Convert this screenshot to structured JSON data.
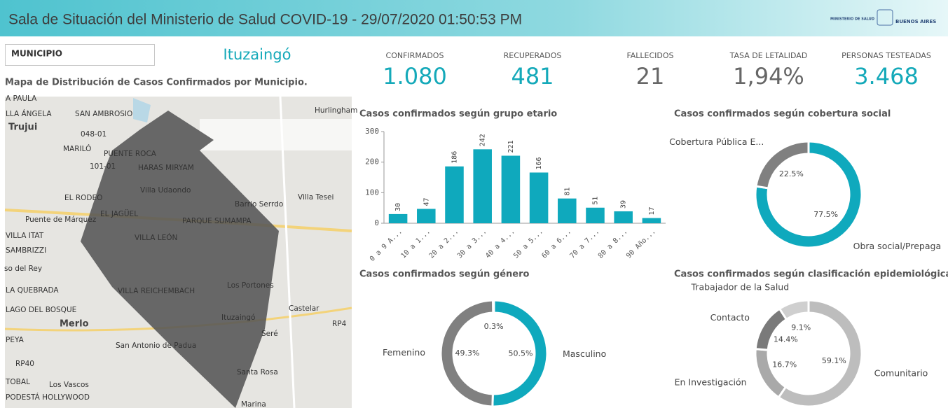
{
  "header": {
    "title": "Sala de Situación del Ministerio de Salud COVID-19 - 29/07/2020 01:50:53 PM",
    "logo_ministry": "MINISTERIO DE SALUD",
    "logo_province": "BUENOS AIRES"
  },
  "filter": {
    "label": "MUNICIPIO",
    "selected": "Ituzaingó"
  },
  "map": {
    "title": "Mapa de Distribución de Casos Confirmados por Municipio.",
    "labels": [
      "A PAULA",
      "LLA ÁNGELA",
      "SAN AMBROSIO",
      "Trujui",
      "048-01",
      "MARILÓ",
      "PUENTE ROCA",
      "101-01",
      "HARAS MIRYAM",
      "Villa Udaondo",
      "EL RODEO",
      "Barrio Serrdo",
      "Villa Tesei",
      "Hurlingham",
      "Puente de Márquez",
      "EL JAGÜEL",
      "PARQUE SUMAMPA",
      "VILLA ITAT",
      "VILLA LEÓN",
      "SAMBRIZZI",
      "so del Rey",
      "LA QUEBRADA",
      "VILLA REICHEMBACH",
      "Los Portones",
      "LAGO DEL BOSQUE",
      "Castelar",
      "Merlo",
      "Ituzaingó",
      "RP4",
      "PEYA",
      "Seré",
      "San Antonio de Padua",
      "RP40",
      "Santa Rosa",
      "TOBAL",
      "Los Vascos",
      "PODESTÁ HOLLYWOOD",
      "Marina"
    ]
  },
  "kpis": [
    {
      "label": "CONFIRMADOS",
      "value": "1.080",
      "color": "#14a9b9"
    },
    {
      "label": "RECUPERADOS",
      "value": "481",
      "color": "#14a9b9"
    },
    {
      "label": "FALLECIDOS",
      "value": "21",
      "color": "#666666"
    },
    {
      "label": "TASA DE LETALIDAD",
      "value": "1,94%",
      "color": "#666666"
    },
    {
      "label": "PERSONAS TESTEADAS",
      "value": "3.468",
      "color": "#14a9b9"
    }
  ],
  "chart_data": [
    {
      "type": "bar",
      "title": "Casos confirmados según grupo etario",
      "categories": [
        "0 a 9 A...",
        "10 a 1...",
        "20 a 2...",
        "30 a 3...",
        "40 a 4...",
        "50 a 5...",
        "60 a 6...",
        "70 a 7...",
        "80 a 8...",
        "90 Año..."
      ],
      "values": [
        30,
        47,
        186,
        242,
        221,
        166,
        81,
        51,
        39,
        17
      ],
      "color": "#0fa9bd",
      "ylim": [
        0,
        300
      ],
      "yticks": [
        0,
        100,
        200,
        300
      ]
    },
    {
      "type": "donut",
      "title": "Casos confirmados según cobertura social",
      "categories": [
        "Obra social/Prepaga",
        "Cobertura Pública E..."
      ],
      "values": [
        77.5,
        22.5
      ],
      "value_labels": [
        "77.5%",
        "22.5%"
      ],
      "colors": [
        "#0fa9bd",
        "#808080"
      ]
    },
    {
      "type": "donut",
      "title": "Casos confirmados según género",
      "categories": [
        "Masculino",
        "Femenino",
        null
      ],
      "values": [
        50.5,
        49.3,
        0.3
      ],
      "value_labels": [
        "50.5%",
        "49.3%",
        "0.3%"
      ],
      "colors": [
        "#0fa9bd",
        "#808080",
        "#c8c8c8"
      ]
    },
    {
      "type": "donut",
      "title": "Casos confirmados según clasificación epidemiológica",
      "categories": [
        "Comunitario",
        "En Investigación",
        "Contacto",
        "Trabajador de la Salud"
      ],
      "values": [
        59.1,
        16.7,
        14.4,
        9.1
      ],
      "value_labels": [
        "59.1%",
        "16.7%",
        "14.4%",
        "9.1%"
      ],
      "colors": [
        "#bdbdbd",
        "#a9a9a9",
        "#7a7a7a",
        "#cfcfcf"
      ]
    }
  ]
}
